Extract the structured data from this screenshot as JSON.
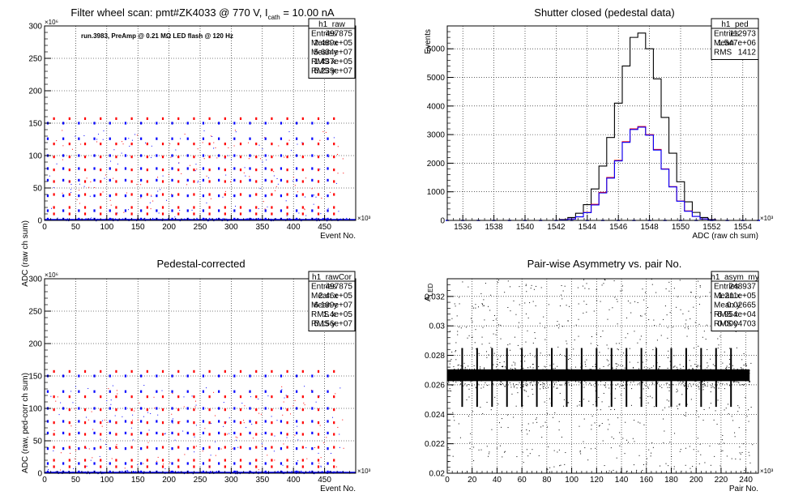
{
  "chart_data": [
    {
      "type": "scatter",
      "title": "Filter wheel scan: pmt#ZK4033 @   770 V, I",
      "title_sub": "cath",
      "title_tail": " = 10.00 nA",
      "xlabel": "Event No.",
      "ylabel": "ADC (raw ch sum)",
      "x_exponent": "×10³",
      "y_exponent": "×10⁶",
      "xlim": [
        0,
        500
      ],
      "ylim": [
        0,
        300
      ],
      "xticks": [
        0,
        50,
        100,
        150,
        200,
        250,
        300,
        350,
        400,
        450
      ],
      "yticks": [
        0,
        50,
        100,
        150,
        200,
        250,
        300
      ],
      "grid": true,
      "annotation": "run.3983, PreAmp @ 0.21 MΩ LED flash @  120 Hz",
      "stats": {
        "name": "h1_raw",
        "rows": [
          {
            "label": "Entries",
            "value": "497875"
          },
          {
            "label": "Mean x",
            "value": "2.489e+05"
          },
          {
            "label": "Mean y",
            "value": "5.634e+07"
          },
          {
            "label": "RMS x",
            "value": "1.437e+05"
          },
          {
            "label": "RMS y",
            "value": "5.239e+07"
          }
        ]
      },
      "series": [
        {
          "color": "#ff0000",
          "x": [
            15,
            40,
            65,
            90,
            115,
            140,
            165,
            190,
            215,
            240,
            265,
            290,
            315,
            340,
            365,
            390,
            415,
            440,
            465
          ],
          "levels": [
            157,
            118,
            98,
            78,
            60,
            40,
            20,
            10
          ]
        },
        {
          "color": "#0000ff",
          "x": [
            5,
            30,
            55,
            80,
            105,
            130,
            155,
            180,
            205,
            230,
            255,
            280,
            305,
            330,
            355,
            380,
            405,
            430,
            455
          ],
          "levels": [
            150,
            126,
            100,
            80,
            62,
            38,
            15,
            2
          ]
        }
      ],
      "colors": {
        "axis": "#000000",
        "grid": "#000000",
        "background": "#ffffff"
      }
    },
    {
      "type": "histogram",
      "title": "Shutter closed (pedestal data)",
      "xlabel": "ADC (raw ch sum)",
      "ylabel": "Events",
      "x_exponent": "×10³",
      "xlim": [
        1535,
        1555
      ],
      "ylim": [
        0,
        6800
      ],
      "xticks": [
        1536,
        1538,
        1540,
        1542,
        1544,
        1546,
        1548,
        1550,
        1552,
        1554
      ],
      "yticks": [
        0,
        1000,
        2000,
        3000,
        4000,
        5000,
        6000
      ],
      "grid": true,
      "stats": {
        "name": "h1_ped",
        "rows": [
          {
            "label": "Entries",
            "value": "112973"
          },
          {
            "label": "Mean",
            "value": "1.547e+06"
          },
          {
            "label": "RMS",
            "value": "1412"
          }
        ]
      },
      "bin_width": 0.5,
      "series": [
        {
          "color": "#000000",
          "x": [
            1542.5,
            1543.0,
            1543.5,
            1544.0,
            1544.5,
            1545.0,
            1545.5,
            1546.0,
            1546.5,
            1547.0,
            1547.5,
            1548.0,
            1548.5,
            1549.0,
            1549.5,
            1550.0,
            1550.5,
            1551.0,
            1551.5,
            1552.0
          ],
          "values": [
            30,
            100,
            250,
            550,
            1100,
            1900,
            2900,
            4100,
            5400,
            6400,
            6550,
            6000,
            4950,
            3600,
            2350,
            1350,
            650,
            280,
            100,
            30
          ]
        },
        {
          "color": "#ff0000",
          "x": [
            1542.5,
            1543.0,
            1543.5,
            1544.0,
            1544.5,
            1545.0,
            1545.5,
            1546.0,
            1546.5,
            1547.0,
            1547.5,
            1548.0,
            1548.5,
            1549.0,
            1549.5,
            1550.0,
            1550.5,
            1551.0,
            1551.5,
            1552.0
          ],
          "values": [
            15,
            50,
            125,
            280,
            560,
            980,
            1500,
            2100,
            2750,
            3200,
            3280,
            3000,
            2480,
            1800,
            1180,
            680,
            330,
            140,
            50,
            15
          ]
        },
        {
          "color": "#0000ff",
          "x": [
            1542.5,
            1543.0,
            1543.5,
            1544.0,
            1544.5,
            1545.0,
            1545.5,
            1546.0,
            1546.5,
            1547.0,
            1547.5,
            1548.0,
            1548.5,
            1549.0,
            1549.5,
            1550.0,
            1550.5,
            1551.0,
            1551.5,
            1552.0
          ],
          "values": [
            15,
            50,
            125,
            270,
            540,
            960,
            1480,
            2080,
            2730,
            3180,
            3260,
            2980,
            2460,
            1790,
            1170,
            670,
            320,
            140,
            50,
            15
          ]
        }
      ]
    },
    {
      "type": "scatter",
      "title": "Pedestal-corrected",
      "xlabel": "Event No.",
      "ylabel": "ADC (raw, ped-corr ch sum)",
      "x_exponent": "×10³",
      "y_exponent": "×10⁶",
      "xlim": [
        0,
        500
      ],
      "ylim": [
        0,
        300
      ],
      "xticks": [
        0,
        50,
        100,
        150,
        200,
        250,
        300,
        350,
        400,
        450
      ],
      "yticks": [
        0,
        50,
        100,
        150,
        200,
        250,
        300
      ],
      "grid": true,
      "stats": {
        "name": "h1_rawCor",
        "rows": [
          {
            "label": "Entries",
            "value": "497875"
          },
          {
            "label": "Mean x",
            "value": "2.46e+05"
          },
          {
            "label": "Mean y",
            "value": "6.199e+07"
          },
          {
            "label": "RMS x",
            "value": "1.4e+05"
          },
          {
            "label": "RMS y",
            "value": "5.156e+07"
          }
        ]
      },
      "series": [
        {
          "color": "#ff0000",
          "x": [
            15,
            40,
            65,
            90,
            115,
            140,
            165,
            190,
            215,
            240,
            265,
            290,
            315,
            340,
            365,
            390,
            415,
            440,
            465
          ],
          "levels": [
            157,
            118,
            98,
            78,
            60,
            40,
            20,
            10
          ]
        },
        {
          "color": "#0000ff",
          "x": [
            5,
            30,
            55,
            80,
            105,
            130,
            155,
            180,
            205,
            230,
            255,
            280,
            305,
            330,
            355,
            380,
            405,
            430,
            455
          ],
          "levels": [
            150,
            126,
            100,
            80,
            62,
            38,
            15,
            2
          ]
        }
      ]
    },
    {
      "type": "scatter",
      "title": "Pair-wise Asymmetry vs. pair No.",
      "xlabel": "Pair No.",
      "ylabel": "A",
      "ylabel_sub": "LED",
      "x_exponent": "×10³",
      "xlim": [
        0,
        250
      ],
      "ylim": [
        0.02,
        0.0332
      ],
      "xticks": [
        0,
        20,
        40,
        60,
        80,
        100,
        120,
        140,
        160,
        180,
        200,
        220,
        240
      ],
      "yticks": [
        0.02,
        0.022,
        0.024,
        0.026,
        0.028,
        0.03,
        0.032
      ],
      "ytick_labels": [
        "0.02",
        "0.022",
        "0.024",
        "0.026",
        "0.028",
        "0.03",
        "0.032"
      ],
      "grid": true,
      "stats": {
        "name": "h1_asym_my",
        "rows": [
          {
            "label": "Entries",
            "value": "248937"
          },
          {
            "label": "Mean x",
            "value": "1.211e+05"
          },
          {
            "label": "Mean y",
            "value": "0.02665"
          },
          {
            "label": "RMS x",
            "value": "6.954e+04"
          },
          {
            "label": "RMS y",
            "value": "0.0004703"
          }
        ]
      },
      "band": {
        "x": [
          0,
          243
        ],
        "center": 0.02665,
        "half_width": 0.0004
      },
      "spike_x": [
        12,
        24,
        36,
        48,
        60,
        72,
        84,
        96,
        108,
        120,
        132,
        144,
        156,
        168,
        180,
        192,
        204,
        216,
        228
      ],
      "spike_range": [
        0.0245,
        0.0285
      ]
    }
  ]
}
